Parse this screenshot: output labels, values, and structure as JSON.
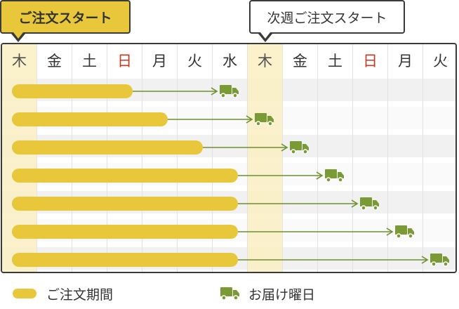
{
  "callouts": {
    "order_start": "ご注文スタート",
    "next_week_order_start": "次週ご注文スタート"
  },
  "days": [
    {
      "label": "木",
      "holiday": false,
      "highlight": true
    },
    {
      "label": "金",
      "holiday": false,
      "highlight": false
    },
    {
      "label": "土",
      "holiday": false,
      "highlight": false
    },
    {
      "label": "日",
      "holiday": true,
      "highlight": false
    },
    {
      "label": "月",
      "holiday": false,
      "highlight": false
    },
    {
      "label": "火",
      "holiday": false,
      "highlight": false
    },
    {
      "label": "水",
      "holiday": false,
      "highlight": false
    },
    {
      "label": "木",
      "holiday": false,
      "highlight": true
    },
    {
      "label": "金",
      "holiday": false,
      "highlight": false
    },
    {
      "label": "土",
      "holiday": false,
      "highlight": false
    },
    {
      "label": "日",
      "holiday": true,
      "highlight": false
    },
    {
      "label": "月",
      "holiday": false,
      "highlight": false
    },
    {
      "label": "火",
      "holiday": false,
      "highlight": false
    }
  ],
  "schedule": [
    {
      "order_end_day": 4,
      "delivery_day": 6
    },
    {
      "order_end_day": 5,
      "delivery_day": 7
    },
    {
      "order_end_day": 6,
      "delivery_day": 8
    },
    {
      "order_end_day": 7,
      "delivery_day": 9
    },
    {
      "order_end_day": 7,
      "delivery_day": 10
    },
    {
      "order_end_day": 7,
      "delivery_day": 11
    },
    {
      "order_end_day": 7,
      "delivery_day": 12
    }
  ],
  "legend": {
    "order_period": "ご注文期間",
    "delivery_day": "お届け曜日"
  },
  "colors": {
    "order_bar": "#e9c73a",
    "arrow": "#6e8f2f",
    "truck": "#7a9a35",
    "holiday_text": "#c23b22",
    "highlight_column": "#fbf0c4"
  },
  "icons": {
    "delivery": "truck-icon",
    "order_period": "pill-marker"
  }
}
